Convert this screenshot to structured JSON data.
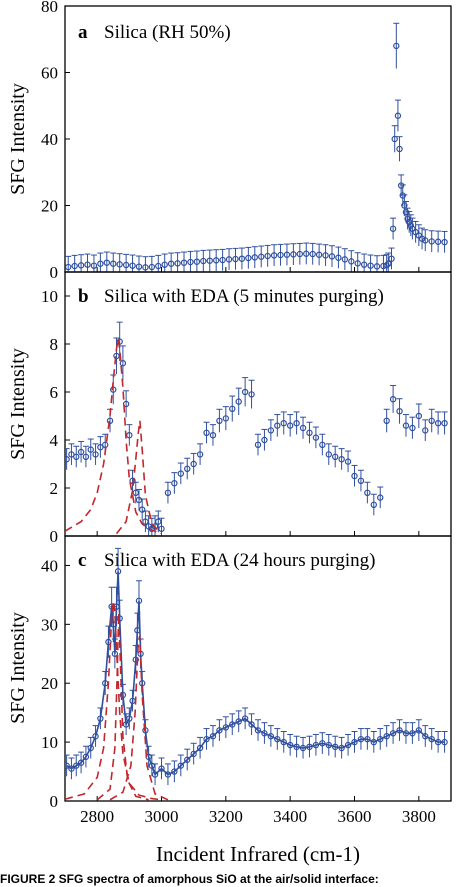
{
  "figure": {
    "xlabel": "Incident Infrared (cm-1)",
    "caption": "FIGURE 2   SFG spectra of amorphous SiO  at the air/solid interface:"
  },
  "chart_data": [
    {
      "type": "scatter",
      "panel_letter": "a",
      "title": "Silica (RH 50%)",
      "ylabel": "SFG Intensity",
      "xlabel": "",
      "xlim": [
        2700,
        3900
      ],
      "ylim": [
        0,
        80
      ],
      "yticks": [
        0,
        20,
        40,
        60,
        80
      ],
      "xticks": [],
      "grid": false,
      "series": [
        {
          "style": "markers",
          "color": "#2f4f9f",
          "x": [
            2710,
            2730,
            2750,
            2770,
            2790,
            2810,
            2830,
            2850,
            2870,
            2890,
            2910,
            2930,
            2950,
            2970,
            2990,
            3010,
            3030,
            3050,
            3070,
            3090,
            3110,
            3130,
            3150,
            3170,
            3190,
            3210,
            3230,
            3250,
            3270,
            3290,
            3310,
            3330,
            3350,
            3370,
            3390,
            3410,
            3430,
            3450,
            3470,
            3490,
            3510,
            3530,
            3550,
            3570,
            3590,
            3610,
            3630,
            3650,
            3670,
            3690,
            3700,
            3705,
            3715,
            3720,
            3725,
            3730,
            3735,
            3740,
            3745,
            3750,
            3755,
            3760,
            3765,
            3770,
            3775,
            3780,
            3790,
            3800,
            3810,
            3820,
            3840,
            3860,
            3880
          ],
          "y": [
            1.5,
            1.8,
            2,
            2.2,
            1.9,
            2.5,
            2.8,
            2.5,
            2.3,
            2.1,
            1.9,
            1.6,
            1.4,
            1.5,
            1.8,
            2.2,
            2.5,
            2.6,
            2.8,
            3,
            3.1,
            3.3,
            3.4,
            3.5,
            3.6,
            3.8,
            3.9,
            4,
            4.2,
            4.4,
            4.6,
            4.8,
            5,
            5.1,
            5.2,
            5.3,
            5.4,
            5.5,
            5.4,
            5.2,
            5,
            4.7,
            4.3,
            3.8,
            3.2,
            2.6,
            2.2,
            1.9,
            1.7,
            1.8,
            2,
            2.5,
            4,
            13,
            40,
            68,
            47,
            37,
            26,
            23,
            20,
            18,
            16,
            15,
            14,
            13,
            12,
            11,
            10,
            9.5,
            9.2,
            9.1,
            9
          ]
        }
      ]
    },
    {
      "type": "scatter",
      "panel_letter": "b",
      "title": "Silica with EDA (5 minutes purging)",
      "ylabel": "SFG Intensity",
      "xlabel": "",
      "xlim": [
        2700,
        3900
      ],
      "ylim": [
        0,
        11
      ],
      "yticks": [
        0,
        2,
        4,
        6,
        8,
        10
      ],
      "xticks": [],
      "grid": false,
      "series": [
        {
          "style": "markers",
          "color": "#2f4f9f",
          "x": [
            2705,
            2720,
            2735,
            2750,
            2765,
            2780,
            2795,
            2810,
            2825,
            2840,
            2850,
            2860,
            2870,
            2880,
            2890,
            2900,
            2910,
            2920,
            2930,
            2940,
            2950,
            2960,
            2970,
            2980,
            2990,
            3000,
            3020,
            3040,
            3060,
            3080,
            3100,
            3120,
            3140,
            3160,
            3180,
            3200,
            3220,
            3240,
            3260,
            3280,
            3300,
            3320,
            3340,
            3360,
            3380,
            3400,
            3420,
            3440,
            3460,
            3480,
            3500,
            3520,
            3540,
            3560,
            3580,
            3600,
            3620,
            3640,
            3660,
            3680,
            3700,
            3720,
            3740,
            3760,
            3780,
            3800,
            3820,
            3840,
            3860,
            3880
          ],
          "y": [
            3.2,
            3.4,
            3.3,
            3.5,
            3.3,
            3.6,
            3.4,
            3.7,
            3.8,
            4.8,
            6.1,
            7.5,
            8.1,
            7.2,
            5.5,
            4.2,
            2.3,
            1.8,
            1.5,
            1.1,
            0.6,
            0.4,
            0.3,
            0.4,
            0.6,
            0.3,
            1.8,
            2.2,
            2.6,
            2.8,
            3,
            3.4,
            4.3,
            4.2,
            4.8,
            4.9,
            5.3,
            5.6,
            6,
            5.9,
            3.8,
            4,
            4.4,
            4.6,
            4.7,
            4.6,
            4.7,
            4.5,
            4.3,
            4.1,
            3.8,
            3.4,
            3.3,
            3.2,
            3.1,
            2.5,
            2.3,
            1.8,
            1.3,
            1.6,
            4.8,
            5.7,
            5.2,
            4.6,
            4.5,
            5,
            4.4,
            4.8,
            4.7,
            4.7
          ]
        },
        {
          "style": "dashed",
          "color": "#c0282d",
          "x": [
            2700,
            2750,
            2780,
            2800,
            2820,
            2840,
            2850,
            2860,
            2865,
            2870,
            2880,
            2890,
            2900,
            2920,
            2940,
            2960,
            3000
          ],
          "y": [
            0.2,
            0.6,
            1.1,
            1.8,
            3,
            5,
            6.5,
            7.8,
            8.2,
            7.8,
            6.2,
            4,
            2.4,
            1,
            0.5,
            0.3,
            0.1
          ]
        },
        {
          "style": "dashed",
          "color": "#c0282d",
          "x": [
            2860,
            2890,
            2910,
            2920,
            2928,
            2933,
            2940,
            2950,
            2970,
            3000
          ],
          "y": [
            0.1,
            0.6,
            1.9,
            3.2,
            4.3,
            4.8,
            3.6,
            1.7,
            0.5,
            0.1
          ]
        }
      ]
    },
    {
      "type": "scatter",
      "panel_letter": "c",
      "title": "Silica with EDA (24 hours purging)",
      "ylabel": "SFG Intensity",
      "xlabel": "Incident Infrared (cm-1)",
      "xlim": [
        2700,
        3900
      ],
      "ylim": [
        0,
        45
      ],
      "yticks": [
        0,
        10,
        20,
        30,
        40
      ],
      "xticks": [
        2800,
        3000,
        3200,
        3400,
        3600,
        3800
      ],
      "grid": false,
      "series": [
        {
          "style": "markers",
          "color": "#2f4f9f",
          "x": [
            2705,
            2720,
            2735,
            2750,
            2765,
            2780,
            2795,
            2810,
            2825,
            2835,
            2845,
            2850,
            2855,
            2860,
            2865,
            2870,
            2880,
            2890,
            2900,
            2910,
            2920,
            2925,
            2930,
            2935,
            2940,
            2950,
            2960,
            2970,
            2980,
            3000,
            3020,
            3040,
            3060,
            3080,
            3100,
            3120,
            3140,
            3160,
            3180,
            3200,
            3220,
            3240,
            3260,
            3280,
            3300,
            3320,
            3340,
            3360,
            3380,
            3400,
            3420,
            3440,
            3460,
            3480,
            3500,
            3520,
            3540,
            3560,
            3580,
            3600,
            3620,
            3640,
            3660,
            3680,
            3700,
            3720,
            3740,
            3760,
            3780,
            3800,
            3820,
            3840,
            3860,
            3880
          ],
          "y": [
            6,
            5.5,
            6,
            6.5,
            7.5,
            9,
            11,
            14,
            20,
            27,
            33,
            30,
            25,
            33,
            39,
            31,
            18,
            13,
            14,
            17,
            24,
            29,
            34,
            25,
            20,
            12,
            7.5,
            6,
            4.5,
            5.5,
            4.5,
            5,
            6,
            7,
            8,
            9,
            10.5,
            11,
            12,
            12.5,
            13,
            13.5,
            14,
            13,
            12,
            11.5,
            11,
            10.5,
            10,
            9.5,
            9.2,
            9,
            9.2,
            9.5,
            9.8,
            9.5,
            9.2,
            9,
            9.5,
            10,
            10.5,
            10.5,
            10,
            10.5,
            11,
            11.5,
            12,
            11.5,
            11.5,
            12,
            11,
            10.5,
            10,
            10
          ]
        },
        {
          "style": "solid",
          "color": "#2f4f9f",
          "x": [
            2705,
            2720,
            2735,
            2750,
            2765,
            2780,
            2795,
            2810,
            2825,
            2835,
            2845,
            2850,
            2855,
            2860,
            2865,
            2870,
            2880,
            2890,
            2900,
            2910,
            2920,
            2925,
            2930,
            2935,
            2940,
            2950,
            2960,
            2970,
            2980,
            3000,
            3020,
            3040,
            3060,
            3080,
            3100,
            3120,
            3140,
            3160,
            3180,
            3200,
            3220,
            3240,
            3260,
            3280,
            3300,
            3320,
            3340,
            3360,
            3380,
            3400,
            3420,
            3440,
            3460,
            3480,
            3500,
            3520,
            3540,
            3560,
            3580,
            3600,
            3620,
            3640,
            3660,
            3680,
            3700,
            3720,
            3740,
            3760,
            3780,
            3800,
            3820,
            3840,
            3860,
            3880
          ],
          "y": [
            6,
            5.5,
            6,
            6.5,
            7.5,
            9,
            11,
            14,
            20,
            27,
            33,
            30,
            25,
            33,
            39,
            31,
            18,
            13,
            14,
            17,
            24,
            29,
            34,
            25,
            20,
            12,
            7.5,
            6,
            4.5,
            5.5,
            4.5,
            5,
            6,
            7,
            8,
            9,
            10.5,
            11,
            12,
            12.5,
            13,
            13.5,
            14,
            13,
            12,
            11.5,
            11,
            10.5,
            10,
            9.5,
            9.2,
            9,
            9.2,
            9.5,
            9.8,
            9.5,
            9.2,
            9,
            9.5,
            10,
            10.5,
            10.5,
            10,
            10.5,
            11,
            11.5,
            12,
            11.5,
            11.5,
            12,
            11,
            10.5,
            10,
            10
          ]
        },
        {
          "style": "dashed",
          "color": "#c0282d",
          "x": [
            2700,
            2760,
            2800,
            2820,
            2835,
            2845,
            2850,
            2855,
            2860,
            2870,
            2880,
            2900,
            2930,
            2970,
            3000
          ],
          "y": [
            0.3,
            1.2,
            4,
            9,
            20,
            31,
            34,
            32,
            26,
            15,
            8,
            3,
            1,
            0.4,
            0.2
          ]
        },
        {
          "style": "dashed",
          "color": "#c0282d",
          "x": [
            2800,
            2840,
            2855,
            2862,
            2867,
            2872,
            2880,
            2895,
            2920,
            2960
          ],
          "y": [
            0.2,
            2,
            9,
            21,
            32,
            24,
            11,
            3.5,
            0.8,
            0.2
          ]
        },
        {
          "style": "dashed",
          "color": "#c0282d",
          "x": [
            2840,
            2880,
            2905,
            2918,
            2927,
            2932,
            2940,
            2955,
            2980,
            3020
          ],
          "y": [
            0.2,
            1.5,
            6,
            15,
            26,
            28,
            18,
            6,
            1.2,
            0.2
          ]
        }
      ]
    }
  ]
}
